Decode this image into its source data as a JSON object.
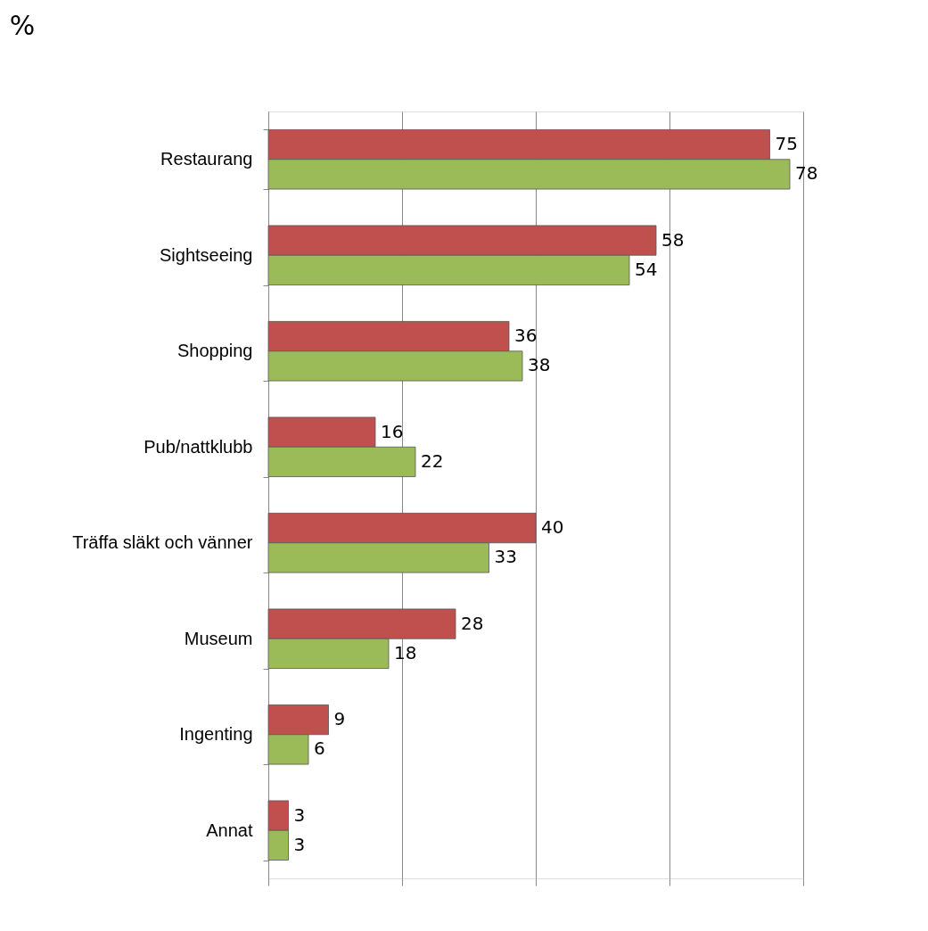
{
  "chart_data": {
    "type": "bar",
    "orientation": "horizontal",
    "title": "%",
    "categories": [
      "Restaurang",
      "Sightseeing",
      "Shopping",
      "Pub/nattklubb",
      "Träffa släkt och vänner",
      "Museum",
      "Ingenting",
      "Annat"
    ],
    "series": [
      {
        "color": "#c0504d",
        "values": [
          75,
          58,
          36,
          16,
          40,
          28,
          9,
          3
        ]
      },
      {
        "color": "#9bbb59",
        "values": [
          78,
          54,
          38,
          22,
          33,
          18,
          6,
          3
        ]
      }
    ],
    "xlim": [
      0,
      80
    ],
    "xticks": [
      {
        "value": 0,
        "label": null
      },
      {
        "value": 20,
        "label": null
      },
      {
        "value": 40,
        "label": null
      },
      {
        "value": 60,
        "label": null
      },
      {
        "value": 80,
        "label": null
      }
    ],
    "tick_labels": "y",
    "grid": "x",
    "legend": false,
    "data_labels": true
  }
}
